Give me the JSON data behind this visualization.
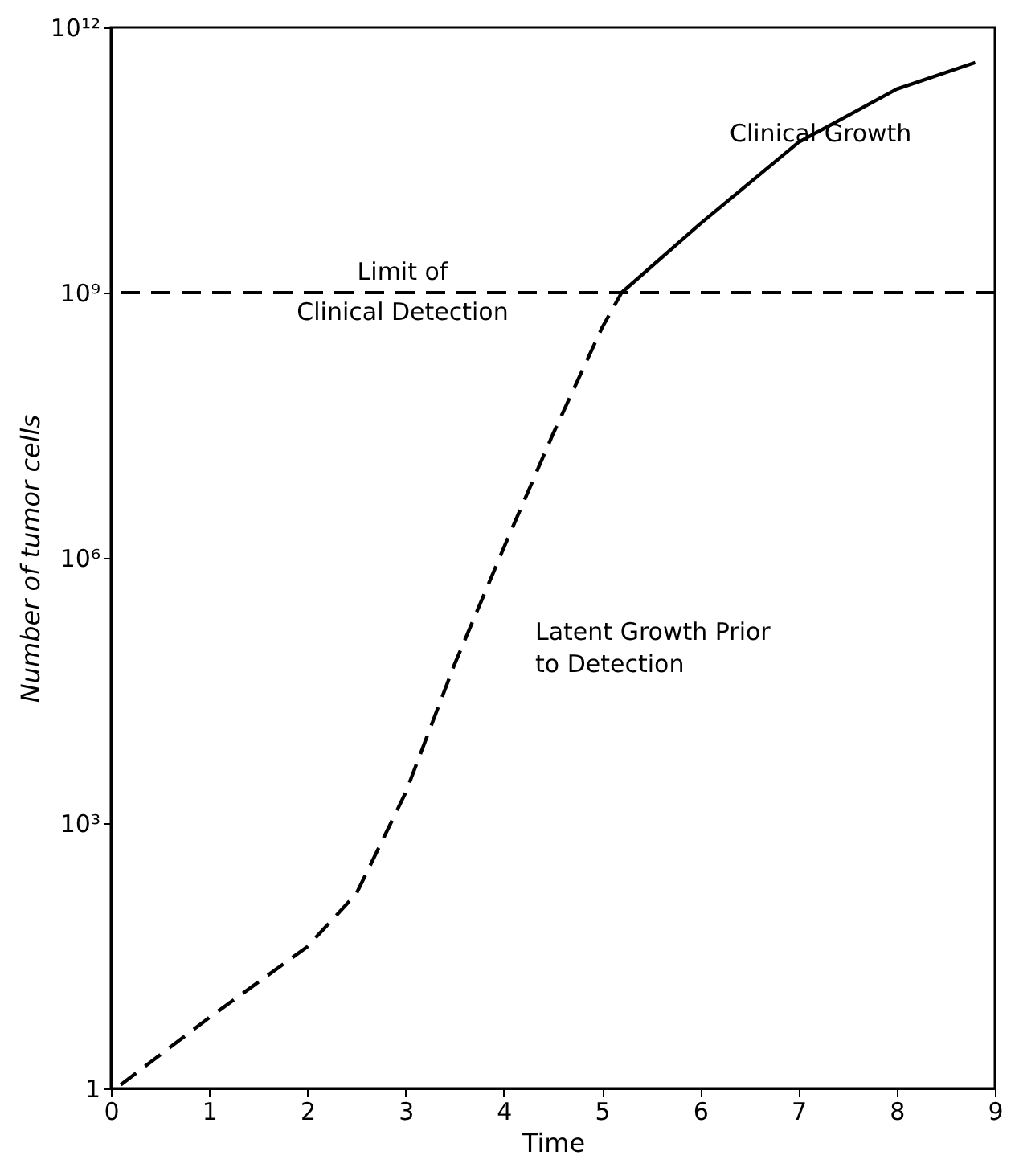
{
  "chart_data": {
    "type": "line",
    "xlabel": "Time",
    "ylabel": "Number of tumor cells",
    "log": "y",
    "xlim": [
      0,
      9
    ],
    "xticks": [
      0,
      1,
      2,
      3,
      4,
      5,
      6,
      7,
      8,
      9
    ],
    "ylim": [
      1,
      1000000000000.0
    ],
    "yticks": [
      {
        "value": 1,
        "label": "1"
      },
      {
        "value": 1000,
        "label": "10³"
      },
      {
        "value": 1000000,
        "label": "10⁶"
      },
      {
        "value": 1000000000,
        "label": "10⁹"
      },
      {
        "value": 1000000000000,
        "label": "10¹²"
      }
    ],
    "grid": false,
    "marker": "none",
    "series": [
      {
        "color": "#000000",
        "line_style": "dashed",
        "x": [
          0.1,
          1,
          2,
          2.5,
          3,
          3.5,
          4,
          4.5,
          5,
          5.2
        ],
        "values": [
          1.1,
          6.3,
          40,
          160,
          2200,
          63000,
          1300000,
          25000000,
          400000000,
          1000000000
        ]
      },
      {
        "color": "#000000",
        "line_style": "solid",
        "x": [
          5.2,
          6,
          7,
          8,
          8.8
        ],
        "values": [
          1000000000,
          6000000000,
          50000000000,
          200000000000,
          400000000000
        ]
      }
    ],
    "ref_lines": [
      {
        "axis": "y",
        "value": 1000000000,
        "label": "Limit of\nClinical Detection",
        "line_style": "dashed",
        "color": "#000000"
      }
    ],
    "annotations": [
      "Clinical Growth",
      "Latent Growth Prior\nto Detection"
    ]
  }
}
